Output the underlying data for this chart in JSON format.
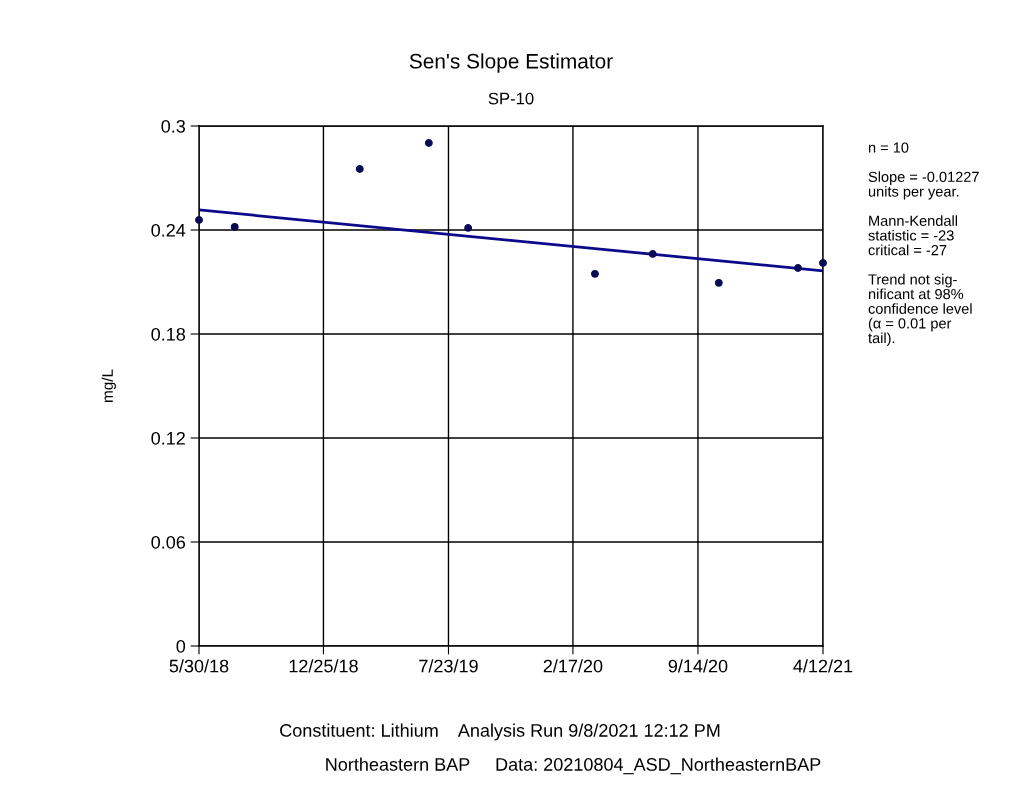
{
  "chart_data": {
    "type": "scatter",
    "title": "Sen's Slope Estimator",
    "subtitle": "SP-10",
    "ylabel": "mg/L",
    "series": [
      {
        "marker": "circle",
        "color": "#0b0b55",
        "x": [
          "2018-05-30",
          "2018-07-29",
          "2019-02-24",
          "2019-06-20",
          "2019-08-25",
          "2020-03-25",
          "2020-06-30",
          "2020-10-19",
          "2021-03-01",
          "2021-04-12"
        ],
        "values": [
          0.2458,
          0.2418,
          0.2752,
          0.2902,
          0.2412,
          0.2147,
          0.2262,
          0.2095,
          0.2181,
          0.221
        ]
      },
      {
        "type": "line",
        "line_style": "solid",
        "color": "#0a0a8a",
        "x": [
          "2018-05-30",
          "2021-04-12"
        ],
        "values": [
          0.2516,
          0.2164
        ]
      }
    ],
    "xlim": [
      "2018-05-30",
      "2021-04-12"
    ],
    "xticks": [
      {
        "value": "2018-05-30",
        "label": "5/30/18"
      },
      {
        "value": "2018-12-25",
        "label": "12/25/18"
      },
      {
        "value": "2019-07-23",
        "label": "7/23/19"
      },
      {
        "value": "2020-02-17",
        "label": "2/17/20"
      },
      {
        "value": "2020-09-14",
        "label": "9/14/20"
      },
      {
        "value": "2021-04-12",
        "label": "4/12/21"
      }
    ],
    "ylim": [
      0,
      0.3
    ],
    "yticks": [
      0,
      0.06,
      0.12,
      0.18,
      0.24,
      0.3
    ],
    "grid": true,
    "annotations": [
      "n = 10\n\nSlope = -0.01227\nunits per year.\n\nMann-Kendall\nstatistic = -23\ncritical = -27\n\nTrend not sig-\nnificant at 98%\nconfidence level\n(α = 0.01 per\ntail).",
      "Constituent: Lithium    Analysis Run 9/8/2021 12:12 PM",
      "Northeastern BAP     Data: 20210804_ASD_NortheasternBAP"
    ]
  }
}
